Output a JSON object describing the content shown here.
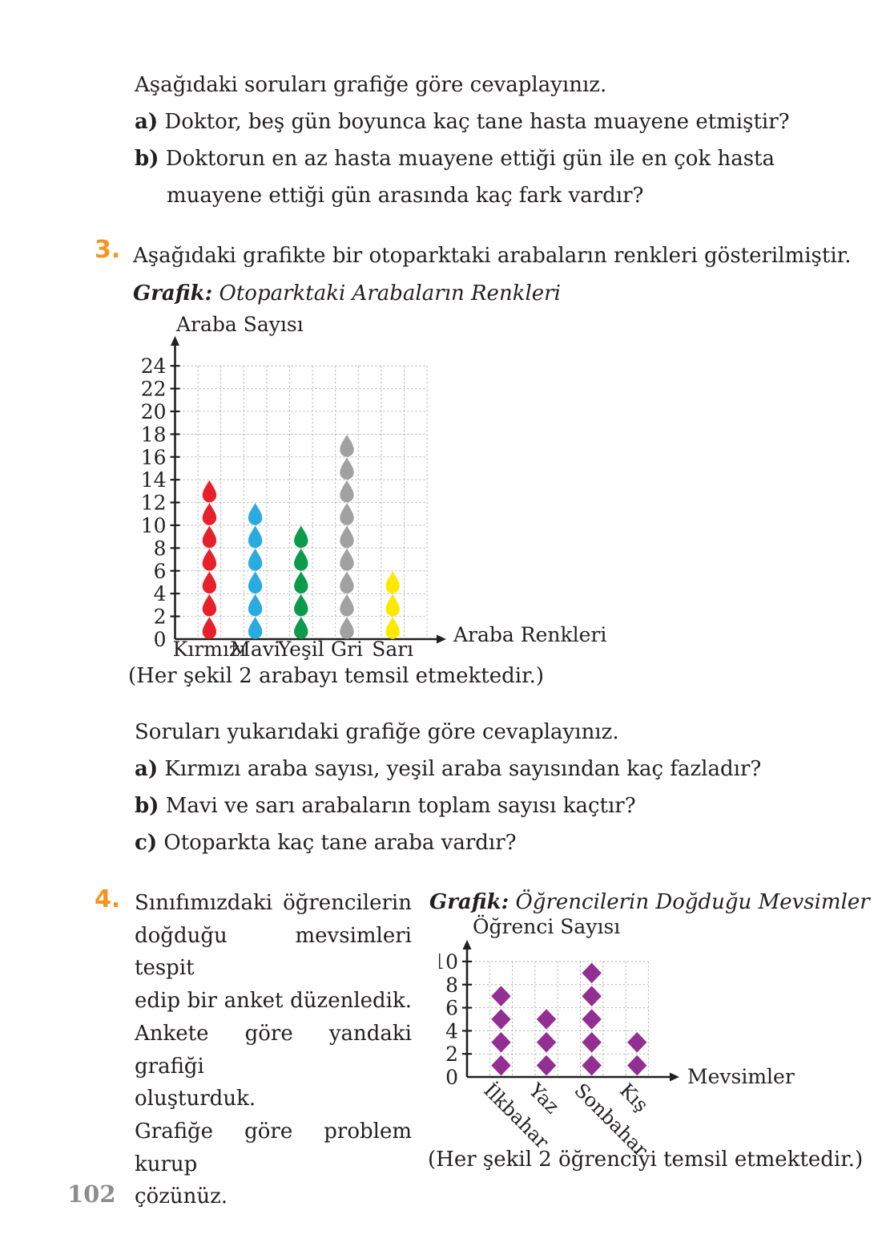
{
  "page": {
    "number": "102"
  },
  "theme": {
    "accent": "#F7941D",
    "ink": "#231F20",
    "page_number_color": "#8D8D90",
    "grid_color": "#ABABAB"
  },
  "intro": {
    "lead": "Aşağıdaki soruları grafiğe göre cevaplayınız.",
    "items": [
      {
        "label": "a)",
        "text": "Doktor, beş gün boyunca kaç tane hasta muayene etmiştir?"
      },
      {
        "label": "b)",
        "text": "Doktorun en az hasta muayene ettiği gün ile en çok hasta muayene ettiği gün arasında kaç fark vardır?"
      }
    ]
  },
  "q3": {
    "number": "3.",
    "statement": "Aşağıdaki grafikte bir otoparktaki arabaların renkleri gösterilmiştir.",
    "chart_heading": {
      "label": "Grafik:",
      "title": "Otoparktaki Arabaların Renkleri"
    },
    "caption": "(Her şekil 2 arabayı temsil etmektedir.)",
    "lead": "Soruları yukarıdaki grafiğe göre cevaplayınız.",
    "items": [
      {
        "label": "a)",
        "text": "Kırmızı araba sayısı, yeşil araba sayısından kaç fazladır?"
      },
      {
        "label": "b)",
        "text": "Mavi ve sarı arabaların toplam sayısı kaçtır?"
      },
      {
        "label": "c)",
        "text": "Otoparkta kaç tane araba vardır?"
      }
    ]
  },
  "q4": {
    "number": "4.",
    "statement_lines": [
      {
        "text": "Sınıfımızdaki öğrencilerin",
        "justify": true
      },
      {
        "text": "doğduğu mevsimleri tespit",
        "justify": true
      },
      {
        "text": "edip bir anket düzenledik.",
        "justify": true
      },
      {
        "text": "Ankete göre yandaki grafiği",
        "justify": true
      },
      {
        "text": "oluşturduk.",
        "justify": false
      },
      {
        "text": "Grafiğe göre problem kurup",
        "justify": true
      },
      {
        "text": "çözünüz.",
        "justify": false
      }
    ],
    "chart_heading": {
      "label": "Grafik:",
      "title": "Öğrencilerin Doğduğu Mevsimler"
    },
    "caption": "(Her şekil 2 öğrenciyi temsil etmektedir.)"
  },
  "chart_data": [
    {
      "type": "pictograph",
      "title": "Otoparktaki Arabaların Renkleri",
      "xlabel": "Araba Renkleri",
      "ylabel": "Araba Sayısı",
      "symbol": "drop",
      "symbol_value": 2,
      "legend_note": "(Her şekil 2 arabayı temsil etmektedir.)",
      "categories": [
        "Kırmızı",
        "Mavi",
        "Yeşil",
        "Gri",
        "Sarı"
      ],
      "symbol_counts": [
        7,
        6,
        5,
        9,
        3
      ],
      "values": [
        14,
        12,
        10,
        18,
        6
      ],
      "colors": [
        "#E8202B",
        "#29ABE2",
        "#0A9B4B",
        "#A1A1A1",
        "#FFE900"
      ],
      "yticks": [
        0,
        2,
        4,
        6,
        8,
        10,
        12,
        14,
        16,
        18,
        20,
        22,
        24
      ],
      "ylim": [
        0,
        24
      ],
      "grid": true
    },
    {
      "type": "pictograph",
      "title": "Öğrencilerin Doğduğu Mevsimler",
      "xlabel": "Mevsimler",
      "ylabel": "Öğrenci Sayısı",
      "symbol": "diamond",
      "symbol_value": 2,
      "legend_note": "(Her şekil 2 öğrenciyi temsil etmektedir.)",
      "categories": [
        "İlkbahar",
        "Yaz",
        "Sonbahar",
        "Kış"
      ],
      "symbol_counts": [
        4,
        3,
        5,
        2
      ],
      "values": [
        8,
        6,
        10,
        4
      ],
      "colors": [
        "#932E93",
        "#932E93",
        "#932E93",
        "#932E93"
      ],
      "yticks": [
        0,
        2,
        4,
        6,
        8,
        10
      ],
      "ylim": [
        0,
        10
      ],
      "grid": true
    }
  ]
}
